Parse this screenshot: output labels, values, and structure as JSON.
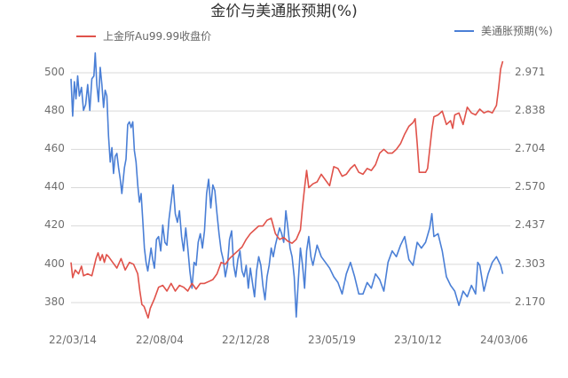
{
  "title": "金价与美通胀预期(%)",
  "legend": {
    "left": {
      "label": "上金所Au99.99收盘价",
      "color": "#e0524a"
    },
    "right": {
      "label": "美通胀预期(%)",
      "color": "#4a7fd6"
    }
  },
  "axes": {
    "left_ticks": [
      "500",
      "480",
      "460",
      "440",
      "420",
      "400",
      "380"
    ],
    "right_ticks": [
      "2.971",
      "2.838",
      "2.704",
      "2.570",
      "2.437",
      "2.303",
      "2.170"
    ],
    "x_ticks": [
      "22/03/14",
      "22/08/04",
      "22/12/28",
      "23/05/19",
      "23/10/12",
      "24/03/06"
    ]
  },
  "chart_data": {
    "type": "line",
    "title": "金价与美通胀预期(%)",
    "xlabel": "",
    "ylabel_left": "上金所Au99.99收盘价",
    "ylabel_right": "美通胀预期(%)",
    "x_tick_labels": [
      "22/03/14",
      "22/08/04",
      "22/12/28",
      "23/05/19",
      "23/10/12",
      "24/03/06"
    ],
    "ylim_left": [
      372,
      508
    ],
    "ylim_right": [
      2.12,
      3.05
    ],
    "grid": true,
    "legend_position": "top",
    "series": [
      {
        "name": "上金所Au99.99收盘价",
        "axis": "left",
        "color": "#e0524a",
        "points": [
          [
            0,
            401
          ],
          [
            0.004,
            393
          ],
          [
            0.01,
            397
          ],
          [
            0.018,
            395
          ],
          [
            0.025,
            399
          ],
          [
            0.03,
            394
          ],
          [
            0.04,
            395
          ],
          [
            0.05,
            394
          ],
          [
            0.06,
            403
          ],
          [
            0.065,
            406
          ],
          [
            0.07,
            402
          ],
          [
            0.075,
            405
          ],
          [
            0.08,
            401
          ],
          [
            0.085,
            405
          ],
          [
            0.09,
            404
          ],
          [
            0.1,
            401
          ],
          [
            0.11,
            398
          ],
          [
            0.12,
            403
          ],
          [
            0.13,
            397
          ],
          [
            0.14,
            401
          ],
          [
            0.15,
            400
          ],
          [
            0.16,
            395
          ],
          [
            0.165,
            386
          ],
          [
            0.17,
            379
          ],
          [
            0.175,
            378
          ],
          [
            0.18,
            375
          ],
          [
            0.185,
            372
          ],
          [
            0.19,
            377
          ],
          [
            0.2,
            382
          ],
          [
            0.21,
            388
          ],
          [
            0.22,
            389
          ],
          [
            0.23,
            386
          ],
          [
            0.24,
            390
          ],
          [
            0.25,
            386
          ],
          [
            0.26,
            389
          ],
          [
            0.27,
            388
          ],
          [
            0.28,
            386
          ],
          [
            0.29,
            390
          ],
          [
            0.3,
            387
          ],
          [
            0.31,
            390
          ],
          [
            0.32,
            390
          ],
          [
            0.33,
            391
          ],
          [
            0.34,
            392
          ],
          [
            0.35,
            395
          ],
          [
            0.36,
            401
          ],
          [
            0.37,
            400
          ],
          [
            0.38,
            403
          ],
          [
            0.39,
            405
          ],
          [
            0.4,
            407
          ],
          [
            0.41,
            409
          ],
          [
            0.42,
            413
          ],
          [
            0.43,
            416
          ],
          [
            0.44,
            418
          ],
          [
            0.45,
            420
          ],
          [
            0.46,
            420
          ],
          [
            0.47,
            423
          ],
          [
            0.48,
            424
          ],
          [
            0.49,
            416
          ],
          [
            0.5,
            413
          ],
          [
            0.51,
            414
          ],
          [
            0.52,
            412
          ],
          [
            0.53,
            411
          ],
          [
            0.54,
            413
          ],
          [
            0.55,
            418
          ],
          [
            0.555,
            430
          ],
          [
            0.56,
            440
          ],
          [
            0.565,
            449
          ],
          [
            0.57,
            440
          ],
          [
            0.58,
            442
          ],
          [
            0.59,
            443
          ],
          [
            0.6,
            447
          ],
          [
            0.61,
            444
          ],
          [
            0.62,
            441
          ],
          [
            0.63,
            451
          ],
          [
            0.64,
            450
          ],
          [
            0.65,
            446
          ],
          [
            0.66,
            447
          ],
          [
            0.67,
            450
          ],
          [
            0.68,
            452
          ],
          [
            0.69,
            448
          ],
          [
            0.7,
            447
          ],
          [
            0.71,
            450
          ],
          [
            0.72,
            449
          ],
          [
            0.73,
            452
          ],
          [
            0.74,
            458
          ],
          [
            0.75,
            460
          ],
          [
            0.76,
            458
          ],
          [
            0.77,
            458
          ],
          [
            0.78,
            460
          ],
          [
            0.79,
            463
          ],
          [
            0.8,
            468
          ],
          [
            0.81,
            472
          ],
          [
            0.82,
            474
          ],
          [
            0.825,
            476
          ],
          [
            0.83,
            463
          ],
          [
            0.835,
            448
          ],
          [
            0.84,
            448
          ],
          [
            0.85,
            448
          ],
          [
            0.855,
            450
          ],
          [
            0.86,
            460
          ],
          [
            0.865,
            470
          ],
          [
            0.87,
            477
          ],
          [
            0.88,
            478
          ],
          [
            0.89,
            480
          ],
          [
            0.9,
            473
          ],
          [
            0.91,
            475
          ],
          [
            0.915,
            471
          ],
          [
            0.92,
            478
          ],
          [
            0.93,
            479
          ],
          [
            0.94,
            473
          ],
          [
            0.95,
            482
          ],
          [
            0.96,
            479
          ],
          [
            0.97,
            478
          ],
          [
            0.98,
            481
          ],
          [
            0.99,
            479
          ],
          [
            1.0,
            480
          ],
          [
            1.01,
            479
          ],
          [
            1.02,
            483
          ],
          [
            1.025,
            492
          ],
          [
            1.03,
            502
          ],
          [
            1.035,
            506
          ]
        ]
      },
      {
        "name": "美通胀预期(%)",
        "axis": "right",
        "color": "#4a7fd6",
        "points": [
          [
            0,
            2.95
          ],
          [
            0.004,
            2.82
          ],
          [
            0.008,
            2.94
          ],
          [
            0.012,
            2.88
          ],
          [
            0.016,
            2.96
          ],
          [
            0.02,
            2.89
          ],
          [
            0.025,
            2.92
          ],
          [
            0.03,
            2.84
          ],
          [
            0.035,
            2.86
          ],
          [
            0.04,
            2.93
          ],
          [
            0.045,
            2.84
          ],
          [
            0.05,
            2.95
          ],
          [
            0.055,
            2.96
          ],
          [
            0.058,
            3.04
          ],
          [
            0.062,
            2.93
          ],
          [
            0.066,
            2.87
          ],
          [
            0.07,
            2.99
          ],
          [
            0.074,
            2.93
          ],
          [
            0.078,
            2.85
          ],
          [
            0.082,
            2.91
          ],
          [
            0.086,
            2.89
          ],
          [
            0.09,
            2.75
          ],
          [
            0.094,
            2.66
          ],
          [
            0.098,
            2.71
          ],
          [
            0.102,
            2.62
          ],
          [
            0.106,
            2.68
          ],
          [
            0.11,
            2.69
          ],
          [
            0.114,
            2.64
          ],
          [
            0.118,
            2.6
          ],
          [
            0.122,
            2.55
          ],
          [
            0.128,
            2.64
          ],
          [
            0.132,
            2.67
          ],
          [
            0.136,
            2.79
          ],
          [
            0.14,
            2.8
          ],
          [
            0.144,
            2.78
          ],
          [
            0.148,
            2.8
          ],
          [
            0.152,
            2.7
          ],
          [
            0.156,
            2.66
          ],
          [
            0.16,
            2.58
          ],
          [
            0.164,
            2.52
          ],
          [
            0.168,
            2.55
          ],
          [
            0.172,
            2.46
          ],
          [
            0.176,
            2.36
          ],
          [
            0.18,
            2.31
          ],
          [
            0.184,
            2.28
          ],
          [
            0.188,
            2.32
          ],
          [
            0.192,
            2.36
          ],
          [
            0.196,
            2.32
          ],
          [
            0.2,
            2.29
          ],
          [
            0.205,
            2.39
          ],
          [
            0.21,
            2.4
          ],
          [
            0.215,
            2.35
          ],
          [
            0.22,
            2.44
          ],
          [
            0.225,
            2.38
          ],
          [
            0.23,
            2.37
          ],
          [
            0.235,
            2.46
          ],
          [
            0.24,
            2.52
          ],
          [
            0.245,
            2.58
          ],
          [
            0.25,
            2.48
          ],
          [
            0.255,
            2.45
          ],
          [
            0.26,
            2.49
          ],
          [
            0.265,
            2.4
          ],
          [
            0.27,
            2.35
          ],
          [
            0.275,
            2.43
          ],
          [
            0.28,
            2.36
          ],
          [
            0.285,
            2.28
          ],
          [
            0.29,
            2.22
          ],
          [
            0.295,
            2.31
          ],
          [
            0.3,
            2.3
          ],
          [
            0.305,
            2.38
          ],
          [
            0.31,
            2.41
          ],
          [
            0.315,
            2.36
          ],
          [
            0.32,
            2.42
          ],
          [
            0.325,
            2.55
          ],
          [
            0.33,
            2.6
          ],
          [
            0.335,
            2.5
          ],
          [
            0.34,
            2.58
          ],
          [
            0.345,
            2.56
          ],
          [
            0.35,
            2.48
          ],
          [
            0.355,
            2.41
          ],
          [
            0.36,
            2.35
          ],
          [
            0.365,
            2.32
          ],
          [
            0.37,
            2.26
          ],
          [
            0.375,
            2.3
          ],
          [
            0.38,
            2.39
          ],
          [
            0.385,
            2.42
          ],
          [
            0.39,
            2.3
          ],
          [
            0.395,
            2.26
          ],
          [
            0.4,
            2.32
          ],
          [
            0.405,
            2.35
          ],
          [
            0.41,
            2.28
          ],
          [
            0.415,
            2.26
          ],
          [
            0.42,
            2.3
          ],
          [
            0.425,
            2.22
          ],
          [
            0.43,
            2.29
          ],
          [
            0.435,
            2.24
          ],
          [
            0.44,
            2.19
          ],
          [
            0.445,
            2.28
          ],
          [
            0.45,
            2.33
          ],
          [
            0.455,
            2.3
          ],
          [
            0.46,
            2.23
          ],
          [
            0.465,
            2.18
          ],
          [
            0.47,
            2.26
          ],
          [
            0.475,
            2.3
          ],
          [
            0.48,
            2.36
          ],
          [
            0.485,
            2.33
          ],
          [
            0.49,
            2.37
          ],
          [
            0.495,
            2.4
          ],
          [
            0.5,
            2.43
          ],
          [
            0.505,
            2.41
          ],
          [
            0.51,
            2.38
          ],
          [
            0.515,
            2.49
          ],
          [
            0.52,
            2.43
          ],
          [
            0.525,
            2.36
          ],
          [
            0.53,
            2.33
          ],
          [
            0.535,
            2.26
          ],
          [
            0.54,
            2.12
          ],
          [
            0.545,
            2.25
          ],
          [
            0.55,
            2.36
          ],
          [
            0.555,
            2.3
          ],
          [
            0.56,
            2.22
          ],
          [
            0.565,
            2.35
          ],
          [
            0.57,
            2.4
          ],
          [
            0.575,
            2.33
          ],
          [
            0.58,
            2.3
          ],
          [
            0.59,
            2.37
          ],
          [
            0.6,
            2.33
          ],
          [
            0.61,
            2.31
          ],
          [
            0.62,
            2.29
          ],
          [
            0.63,
            2.26
          ],
          [
            0.64,
            2.24
          ],
          [
            0.65,
            2.2
          ],
          [
            0.66,
            2.27
          ],
          [
            0.67,
            2.31
          ],
          [
            0.68,
            2.26
          ],
          [
            0.69,
            2.2
          ],
          [
            0.7,
            2.2
          ],
          [
            0.71,
            2.24
          ],
          [
            0.72,
            2.22
          ],
          [
            0.73,
            2.27
          ],
          [
            0.74,
            2.25
          ],
          [
            0.75,
            2.21
          ],
          [
            0.76,
            2.31
          ],
          [
            0.77,
            2.35
          ],
          [
            0.78,
            2.33
          ],
          [
            0.79,
            2.37
          ],
          [
            0.8,
            2.4
          ],
          [
            0.81,
            2.32
          ],
          [
            0.82,
            2.3
          ],
          [
            0.83,
            2.38
          ],
          [
            0.84,
            2.36
          ],
          [
            0.85,
            2.38
          ],
          [
            0.86,
            2.43
          ],
          [
            0.865,
            2.48
          ],
          [
            0.87,
            2.4
          ],
          [
            0.88,
            2.41
          ],
          [
            0.89,
            2.35
          ],
          [
            0.9,
            2.26
          ],
          [
            0.91,
            2.23
          ],
          [
            0.92,
            2.21
          ],
          [
            0.93,
            2.16
          ],
          [
            0.94,
            2.21
          ],
          [
            0.95,
            2.19
          ],
          [
            0.96,
            2.23
          ],
          [
            0.97,
            2.2
          ],
          [
            0.975,
            2.31
          ],
          [
            0.98,
            2.3
          ],
          [
            0.99,
            2.21
          ],
          [
            1.0,
            2.27
          ],
          [
            1.01,
            2.31
          ],
          [
            1.02,
            2.33
          ],
          [
            1.03,
            2.3
          ],
          [
            1.035,
            2.27
          ]
        ]
      }
    ]
  }
}
